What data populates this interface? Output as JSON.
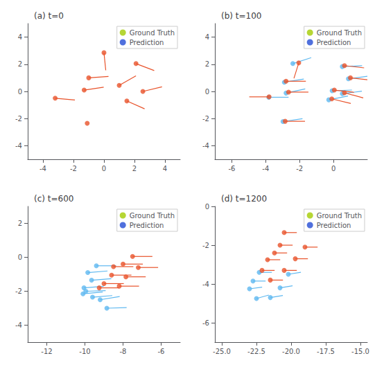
{
  "chart_data": [
    {
      "type": "scatter",
      "title": "(a) t=0",
      "series": [
        {
          "name": "Ground Truth",
          "color": "#e8522a",
          "values": [
            [
              0.0,
              2.85
            ],
            [
              -1.0,
              1.0
            ],
            [
              -1.3,
              0.1
            ],
            [
              -3.2,
              -0.5
            ],
            [
              -1.1,
              -2.35
            ],
            [
              1.0,
              0.45
            ],
            [
              1.5,
              -0.7
            ],
            [
              2.1,
              2.05
            ],
            [
              2.55,
              0.0
            ]
          ],
          "velocities": [
            [
              0.05,
              -0.55
            ],
            [
              0.65,
              0.05
            ],
            [
              0.6,
              0.1
            ],
            [
              1.0,
              -0.1
            ],
            [
              0.0,
              0.0
            ],
            [
              0.55,
              0.35
            ],
            [
              0.5,
              -0.25
            ],
            [
              0.35,
              -0.15
            ],
            [
              0.55,
              0.15
            ]
          ]
        },
        {
          "name": "Prediction",
          "color": "#5eb8f0",
          "values": [],
          "velocities": []
        }
      ],
      "xlim": [
        -5,
        5
      ],
      "ylim": [
        -5,
        5
      ],
      "xticks": [
        -4,
        -2,
        0,
        2,
        4
      ],
      "yticks": [
        -4,
        -2,
        0,
        2,
        4
      ],
      "grid": false,
      "legend": "upper right"
    },
    {
      "type": "scatter",
      "title": "(b) t=100",
      "series": [
        {
          "name": "Ground Truth",
          "color": "#e8522a",
          "values": [
            [
              -2.05,
              2.1
            ],
            [
              -3.8,
              -0.4
            ],
            [
              -2.8,
              0.75
            ],
            [
              -2.65,
              -0.05
            ],
            [
              -2.85,
              -2.2
            ],
            [
              0.05,
              0.1
            ],
            [
              -0.1,
              -0.55
            ],
            [
              0.65,
              1.9
            ],
            [
              1.0,
              1.0
            ],
            [
              0.65,
              -0.1
            ]
          ],
          "velocities": [
            [
              -0.05,
              -0.2
            ],
            [
              -0.05,
              0.0
            ],
            [
              0.25,
              0.0
            ],
            [
              0.3,
              0.0
            ],
            [
              0.25,
              0.0
            ],
            [
              0.35,
              -0.05
            ],
            [
              0.4,
              -0.12
            ],
            [
              0.35,
              -0.05
            ],
            [
              0.35,
              -0.05
            ],
            [
              0.35,
              -0.12
            ]
          ]
        },
        {
          "name": "Prediction",
          "color": "#5eb8f0",
          "values": [
            [
              -2.4,
              2.05
            ],
            [
              -3.82,
              -0.43
            ],
            [
              -2.9,
              0.68
            ],
            [
              -2.8,
              -0.12
            ],
            [
              -2.98,
              -2.22
            ],
            [
              -0.08,
              0.05
            ],
            [
              -0.28,
              -0.62
            ],
            [
              0.52,
              1.83
            ],
            [
              0.88,
              0.93
            ],
            [
              0.52,
              -0.17
            ]
          ],
          "velocities": [
            [
              0.45,
              0.18
            ],
            [
              0.05,
              0.0
            ],
            [
              0.35,
              0.07
            ],
            [
              0.45,
              0.12
            ],
            [
              0.38,
              0.07
            ],
            [
              0.45,
              0.02
            ],
            [
              0.48,
              0.12
            ],
            [
              0.38,
              0.02
            ],
            [
              0.43,
              0.07
            ],
            [
              0.43,
              0.07
            ]
          ]
        }
      ],
      "xlim": [
        -7,
        2
      ],
      "ylim": [
        -5,
        5
      ],
      "xticks": [
        -6,
        -4,
        -2,
        0
      ],
      "yticks": [
        -4,
        -2,
        0,
        2,
        4
      ],
      "grid": false,
      "legend": "upper right"
    },
    {
      "type": "scatter",
      "title": "(c) t=600",
      "series": [
        {
          "name": "Ground Truth",
          "color": "#e8522a",
          "values": [
            [
              -7.5,
              0.05
            ],
            [
              -8.0,
              -0.4
            ],
            [
              -8.5,
              -0.55
            ],
            [
              -8.6,
              -1.05
            ],
            [
              -9.0,
              -1.55
            ],
            [
              -9.25,
              -1.8
            ],
            [
              -8.2,
              -1.7
            ],
            [
              -7.85,
              -1.15
            ],
            [
              -7.2,
              -0.6
            ]
          ],
          "velocities": [
            [
              0.6,
              0.0
            ],
            [
              0.55,
              0.0
            ],
            [
              0.55,
              0.0
            ],
            [
              0.6,
              0.0
            ],
            [
              0.55,
              0.0
            ],
            [
              0.6,
              0.0
            ],
            [
              0.6,
              0.0
            ],
            [
              0.6,
              0.0
            ],
            [
              0.6,
              0.0
            ]
          ]
        },
        {
          "name": "Prediction",
          "color": "#5eb8f0",
          "values": [
            [
              -9.4,
              -0.5
            ],
            [
              -9.85,
              -0.9
            ],
            [
              -9.65,
              -1.35
            ],
            [
              -10.05,
              -1.8
            ],
            [
              -9.95,
              -2.0
            ],
            [
              -10.1,
              -2.15
            ],
            [
              -9.6,
              -2.35
            ],
            [
              -9.2,
              -2.5
            ],
            [
              -8.85,
              -3.0
            ]
          ],
          "velocities": [
            [
              0.6,
              0.0
            ],
            [
              0.55,
              0.05
            ],
            [
              0.6,
              0.05
            ],
            [
              0.55,
              0.05
            ],
            [
              0.55,
              0.02
            ],
            [
              0.5,
              0.05
            ],
            [
              0.55,
              0.05
            ],
            [
              0.55,
              0.1
            ],
            [
              0.55,
              0.02
            ]
          ]
        }
      ],
      "xlim": [
        -13,
        -5
      ],
      "ylim": [
        -5,
        3
      ],
      "xticks": [
        -12,
        -10,
        -8,
        -6
      ],
      "yticks": [
        -4,
        -2,
        0,
        2
      ],
      "grid": false,
      "legend": "upper right"
    },
    {
      "type": "scatter",
      "title": "(d) t=1200",
      "series": [
        {
          "name": "Ground Truth",
          "color": "#e8522a",
          "values": [
            [
              -20.5,
              -1.35
            ],
            [
              -20.8,
              -2.0
            ],
            [
              -21.2,
              -2.4
            ],
            [
              -21.7,
              -2.75
            ],
            [
              -22.1,
              -3.3
            ],
            [
              -21.5,
              -3.8
            ],
            [
              -20.5,
              -3.3
            ],
            [
              -19.7,
              -2.7
            ],
            [
              -19.0,
              -2.1
            ]
          ],
          "velocities": [
            [
              0.6,
              0.0
            ],
            [
              0.6,
              0.0
            ],
            [
              0.6,
              0.0
            ],
            [
              0.6,
              0.0
            ],
            [
              0.6,
              0.0
            ],
            [
              0.6,
              0.0
            ],
            [
              0.6,
              0.0
            ],
            [
              0.6,
              0.0
            ],
            [
              0.6,
              0.0
            ]
          ]
        },
        {
          "name": "Prediction",
          "color": "#5eb8f0",
          "values": [
            [
              -22.3,
              -3.4
            ],
            [
              -22.75,
              -3.85
            ],
            [
              -23.0,
              -4.25
            ],
            [
              -22.5,
              -4.75
            ],
            [
              -21.5,
              -4.7
            ],
            [
              -20.8,
              -4.2
            ],
            [
              -20.2,
              -3.5
            ]
          ],
          "velocities": [
            [
              0.6,
              0.0
            ],
            [
              0.6,
              0.0
            ],
            [
              0.55,
              0.05
            ],
            [
              0.6,
              0.12
            ],
            [
              0.6,
              0.07
            ],
            [
              0.6,
              0.07
            ],
            [
              0.6,
              0.07
            ]
          ]
        }
      ],
      "xlim": [
        -25.5,
        -14.5
      ],
      "ylim": [
        -7,
        0
      ],
      "xticks": [
        {
          "value": -25.0,
          "label": "-25.0"
        },
        {
          "value": -22.5,
          "label": "-22.5"
        },
        {
          "value": -20.0,
          "label": "-20.0"
        },
        {
          "value": -17.5,
          "label": "-17.5"
        },
        {
          "value": -15.0,
          "label": "-15.0"
        }
      ],
      "yticks": [
        -6,
        -4,
        -2,
        0
      ],
      "grid": false,
      "legend": "upper right"
    }
  ]
}
